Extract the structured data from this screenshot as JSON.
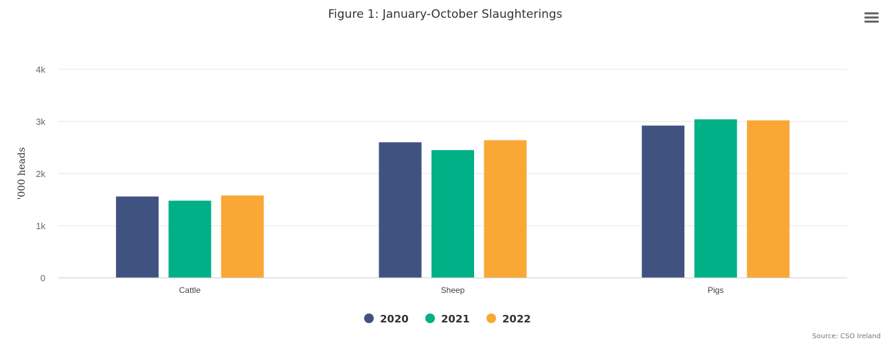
{
  "chart_data": {
    "type": "bar",
    "title": "Figure 1: January-October Slaughterings",
    "ylabel": "'000 heads",
    "xlabel": "",
    "ylim": [
      0,
      4000
    ],
    "yticks": [
      0,
      1000,
      2000,
      3000,
      4000
    ],
    "ytick_labels": [
      "0",
      "1k",
      "2k",
      "3k",
      "4k"
    ],
    "categories": [
      "Cattle",
      "Sheep",
      "Pigs"
    ],
    "series": [
      {
        "name": "2020",
        "color": "#3f5280",
        "values": [
          1560,
          2600,
          2920
        ]
      },
      {
        "name": "2021",
        "color": "#00b087",
        "values": [
          1480,
          2450,
          3040
        ]
      },
      {
        "name": "2022",
        "color": "#f9a836",
        "values": [
          1580,
          2640,
          3020
        ]
      }
    ],
    "grid": true,
    "legend_position": "bottom-center",
    "credit": "Source: CSO Ireland"
  },
  "menu_icon": "hamburger-menu-icon"
}
